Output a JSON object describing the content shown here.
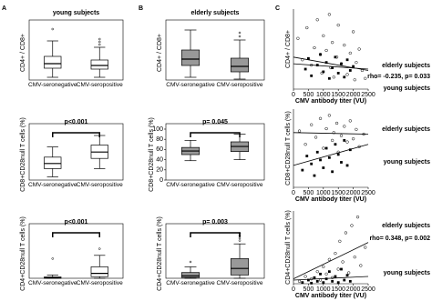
{
  "panels": [
    "A",
    "B",
    "C"
  ],
  "chart_data": [
    {
      "type": "box",
      "title": "young subjects",
      "ylabel": "CD4+ / CD8+",
      "categories": [
        "CMV-seronegative",
        "CMV-seropositive"
      ],
      "color": "#ffffff",
      "ylim": [
        0,
        6
      ],
      "boxes": [
        {
          "min": 0.3,
          "q1": 1.3,
          "median": 1.8,
          "q3": 2.6,
          "max": 4.3,
          "outliers": [
            5.6
          ]
        },
        {
          "min": 0.3,
          "q1": 1.2,
          "median": 1.6,
          "q3": 2.2,
          "max": 3.6,
          "outliers": [
            3.9,
            4.2,
            4.5
          ]
        }
      ]
    },
    {
      "type": "box",
      "ylabel": "CD8+CD28null T cells (%)",
      "annotation": "p<0.001",
      "categories": [
        "CMV-seronegative",
        "CMV-seropositive"
      ],
      "color": "#ffffff",
      "ylim": [
        0,
        80
      ],
      "boxes": [
        {
          "min": 5,
          "q1": 18,
          "median": 26,
          "q3": 36,
          "max": 52,
          "outliers": []
        },
        {
          "min": 18,
          "q1": 34,
          "median": 44,
          "q3": 55,
          "max": 70,
          "outliers": []
        }
      ]
    },
    {
      "type": "box",
      "ylabel": "CD4+CD28null T cells (%)",
      "annotation": "p<0.001",
      "categories": [
        "CMV-seronegative",
        "CMV-seropositive"
      ],
      "color": "#ffffff",
      "ylim": [
        0,
        30
      ],
      "boxes": [
        {
          "min": 0,
          "q1": 0,
          "median": 0.3,
          "q3": 0.8,
          "max": 2,
          "outliers": [
            12
          ]
        },
        {
          "min": 0,
          "q1": 1,
          "median": 3,
          "q3": 7,
          "max": 14,
          "outliers": [
            18
          ]
        }
      ]
    },
    {
      "type": "box",
      "title": "elderly subjects",
      "ylabel": "CD4+ / CD8+",
      "categories": [
        "CMV-seronegative",
        "CMV-seropositive"
      ],
      "color": "#999999",
      "ylim": [
        0,
        6
      ],
      "boxes": [
        {
          "min": 0.3,
          "q1": 1.6,
          "median": 2.3,
          "q3": 3.3,
          "max": 5.5,
          "outliers": []
        },
        {
          "min": 0.1,
          "q1": 0.9,
          "median": 1.5,
          "q3": 2.4,
          "max": 4.4,
          "outliers": [
            4.8,
            5.2
          ]
        }
      ]
    },
    {
      "type": "box",
      "ylabel": "CD8+CD28null T cells (%)",
      "annotation": "p= 0.045",
      "categories": [
        "CMV-seronegative",
        "CMV-seropositive"
      ],
      "color": "#999999",
      "ylim": [
        0,
        100
      ],
      "yticks": [
        0,
        20,
        40,
        60,
        80,
        100
      ],
      "boxes": [
        {
          "min": 38,
          "q1": 50,
          "median": 57,
          "q3": 64,
          "max": 78,
          "outliers": []
        },
        {
          "min": 40,
          "q1": 56,
          "median": 66,
          "q3": 75,
          "max": 90,
          "outliers": []
        }
      ]
    },
    {
      "type": "box",
      "ylabel": "CD4+CD28null T cells (%)",
      "annotation": "p= 0.003",
      "categories": [
        "CMV-seronegative",
        "CMV-seropositive"
      ],
      "color": "#999999",
      "ylim": [
        0,
        60
      ],
      "boxes": [
        {
          "min": 0,
          "q1": 1,
          "median": 3,
          "q3": 7,
          "max": 14,
          "outliers": [
            20
          ]
        },
        {
          "min": 0,
          "q1": 4,
          "median": 12,
          "q3": 24,
          "max": 42,
          "outliers": [
            46,
            49,
            52,
            55
          ]
        }
      ]
    },
    {
      "type": "scatter",
      "ylabel": "CD4+ / CD8+",
      "xlabel": "CMV antibody titer (VU)",
      "annotation": "rho= -0.235, p= 0.033",
      "xlim": [
        0,
        2500
      ],
      "xticks": [
        0,
        500,
        1000,
        1500,
        2000,
        2500
      ],
      "ylim": [
        0,
        6
      ],
      "series": [
        {
          "name": "elderly subjects",
          "marker": "circle-open",
          "color": "#000000",
          "trend": [
            2.4,
            1.4
          ],
          "x": [
            150,
            300,
            450,
            600,
            700,
            800,
            900,
            950,
            1000,
            1100,
            1200,
            1250,
            1300,
            1350,
            1450,
            1500,
            1600,
            1700,
            1800,
            1900,
            2000,
            2050,
            2100,
            2200,
            2300,
            2400
          ],
          "values": [
            3.8,
            2.2,
            4.6,
            1.8,
            3.1,
            5.2,
            2.6,
            1.2,
            4.0,
            2.9,
            5.6,
            1.6,
            3.5,
            0.9,
            2.4,
            4.8,
            1.9,
            3.3,
            1.1,
            2.7,
            4.3,
            0.7,
            2.0,
            3.0,
            1.4,
            0.8
          ]
        },
        {
          "name": "young subjects",
          "marker": "square",
          "color": "#000000",
          "trend": [
            1.9,
            1.5
          ],
          "x": [
            400,
            500,
            600,
            800,
            900,
            1000,
            1100,
            1200,
            1300,
            1400,
            1500,
            1600,
            1700,
            1800,
            1900,
            2000
          ],
          "values": [
            1.5,
            2.3,
            1.0,
            1.8,
            2.6,
            1.3,
            2.0,
            0.8,
            1.6,
            2.4,
            1.2,
            1.9,
            0.9,
            2.2,
            1.4,
            1.7
          ]
        }
      ]
    },
    {
      "type": "scatter",
      "ylabel": "CD8+CD28null T cells (%)",
      "xlabel": "CMV antibody titer (VU)",
      "xlim": [
        0,
        2500
      ],
      "xticks": [
        0,
        500,
        1000,
        1500,
        2000,
        2500
      ],
      "ylim": [
        0,
        100
      ],
      "series": [
        {
          "name": "elderly subjects",
          "marker": "circle-open",
          "color": "#000000",
          "trend": [
            70,
            68
          ],
          "x": [
            200,
            400,
            600,
            750,
            900,
            1000,
            1100,
            1200,
            1300,
            1350,
            1450,
            1500,
            1600,
            1700,
            1800,
            1900,
            2000,
            2100,
            2200,
            2350
          ],
          "values": [
            72,
            55,
            80,
            64,
            88,
            50,
            75,
            92,
            60,
            70,
            82,
            45,
            66,
            78,
            58,
            85,
            62,
            74,
            52,
            68
          ]
        },
        {
          "name": "young subjects",
          "marker": "square",
          "color": "#000000",
          "trend": [
            28,
            55
          ],
          "x": [
            300,
            450,
            600,
            700,
            800,
            900,
            1000,
            1100,
            1200,
            1300,
            1400,
            1500,
            1600,
            1700,
            1800,
            1900
          ],
          "values": [
            22,
            40,
            30,
            15,
            45,
            35,
            25,
            50,
            38,
            20,
            55,
            42,
            32,
            60,
            28,
            48
          ]
        }
      ]
    },
    {
      "type": "scatter",
      "ylabel": "CD4+CD28null T cells (%)",
      "xlabel": "CMV antibody titer (VU)",
      "annotation": "rho= 0.348, p= 0.002",
      "xlim": [
        0,
        2500
      ],
      "xticks": [
        0,
        500,
        1000,
        1500,
        2000,
        2500
      ],
      "ylim": [
        0,
        60
      ],
      "series": [
        {
          "name": "elderly subjects",
          "marker": "circle-open",
          "color": "#000000",
          "trend": [
            4,
            34
          ],
          "x": [
            200,
            400,
            600,
            800,
            900,
            1000,
            1100,
            1200,
            1300,
            1400,
            1500,
            1550,
            1650,
            1750,
            1850,
            1950,
            2050,
            2150,
            2250,
            2400
          ],
          "values": [
            2,
            6,
            4,
            10,
            3,
            14,
            8,
            20,
            5,
            25,
            12,
            35,
            18,
            42,
            9,
            48,
            22,
            55,
            15,
            30
          ]
        },
        {
          "name": "young subjects",
          "marker": "square",
          "color": "#000000",
          "trend": [
            3,
            6
          ],
          "x": [
            300,
            500,
            600,
            700,
            800,
            900,
            1000,
            1100,
            1200,
            1300,
            1400,
            1500,
            1600,
            1700,
            1800,
            1900
          ],
          "values": [
            1,
            3,
            0.5,
            5,
            2,
            8,
            1,
            4,
            10,
            2,
            6,
            1,
            12,
            3,
            7,
            2
          ]
        }
      ]
    }
  ]
}
